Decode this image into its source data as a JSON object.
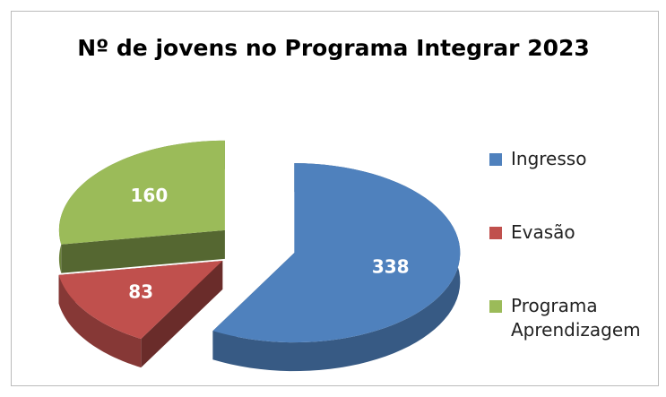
{
  "chart_data": {
    "type": "pie",
    "title": "Nº de jovens no Programa Integrar 2023",
    "categories": [
      "Ingresso",
      "Evasão",
      "Programa Aprendizagem"
    ],
    "values": [
      338,
      83,
      160
    ],
    "colors": [
      "#4f81bd",
      "#c0504d",
      "#9bbb59"
    ],
    "legend": "right"
  }
}
